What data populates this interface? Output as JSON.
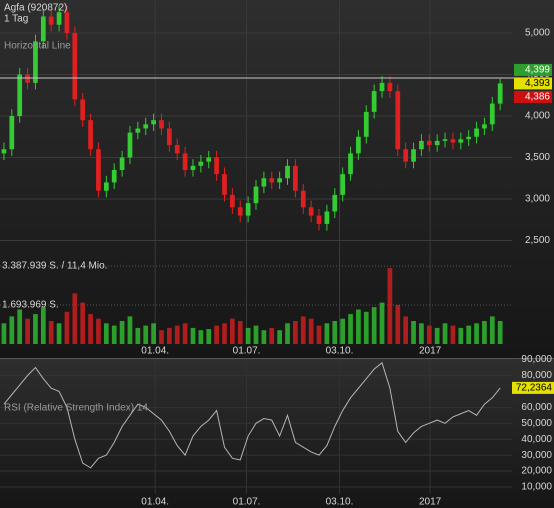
{
  "chart_data": [
    {
      "type": "candlestick",
      "title": "Agfa (920872)",
      "subtitle": "1 Tag",
      "x": [
        0,
        1,
        2,
        3,
        4,
        5,
        6,
        7,
        8,
        9,
        10,
        11,
        12,
        13,
        14,
        15,
        16,
        17,
        18,
        19,
        20,
        21,
        22,
        23,
        24,
        25,
        26,
        27,
        28,
        29,
        30,
        31,
        32,
        33,
        34,
        35,
        36,
        37,
        38,
        39,
        40,
        41,
        42,
        43,
        44,
        45,
        46,
        47,
        48,
        49,
        50,
        51,
        52,
        53,
        54,
        55,
        56,
        57,
        58,
        59,
        60,
        61,
        62,
        63
      ],
      "xlim": [
        -0.5,
        64.5
      ],
      "xticks": [
        {
          "value": 19.2,
          "label": "01.04."
        },
        {
          "value": 30.8,
          "label": "01.07."
        },
        {
          "value": 42.6,
          "label": "03.10."
        },
        {
          "value": 54.1,
          "label": "2017"
        }
      ],
      "open": [
        3.55,
        3.6,
        4.0,
        4.5,
        4.4,
        4.9,
        5.2,
        5.1,
        5.25,
        5.0,
        4.2,
        3.95,
        3.6,
        3.1,
        3.2,
        3.35,
        3.5,
        3.8,
        3.85,
        3.9,
        3.95,
        3.85,
        3.65,
        3.55,
        3.35,
        3.4,
        3.45,
        3.5,
        3.3,
        3.05,
        2.9,
        2.8,
        2.95,
        3.15,
        3.25,
        3.2,
        3.25,
        3.4,
        3.1,
        2.9,
        2.8,
        2.7,
        2.85,
        3.05,
        3.3,
        3.55,
        3.75,
        4.05,
        4.3,
        4.4,
        4.3,
        3.6,
        3.45,
        3.6,
        3.7,
        3.65,
        3.7,
        3.72,
        3.68,
        3.72,
        3.75,
        3.85,
        3.9,
        4.15
      ],
      "high": [
        3.68,
        4.08,
        4.58,
        4.58,
        4.98,
        5.28,
        5.28,
        5.33,
        5.33,
        5.08,
        4.28,
        4.03,
        3.68,
        3.28,
        3.43,
        3.58,
        3.88,
        3.93,
        3.98,
        4.03,
        4.03,
        3.93,
        3.73,
        3.63,
        3.48,
        3.53,
        3.58,
        3.58,
        3.38,
        3.13,
        2.98,
        3.03,
        3.23,
        3.33,
        3.33,
        3.33,
        3.48,
        3.48,
        3.18,
        2.98,
        2.88,
        2.93,
        3.13,
        3.38,
        3.63,
        3.83,
        4.13,
        4.38,
        4.48,
        4.48,
        4.38,
        3.68,
        3.68,
        3.78,
        3.78,
        3.78,
        3.8,
        3.8,
        3.8,
        3.83,
        3.93,
        3.98,
        4.23,
        4.45
      ],
      "low": [
        3.47,
        3.52,
        3.92,
        4.32,
        4.32,
        4.82,
        5.02,
        5.02,
        4.92,
        4.12,
        3.87,
        3.52,
        3.02,
        3.02,
        3.12,
        3.27,
        3.42,
        3.72,
        3.77,
        3.82,
        3.77,
        3.57,
        3.47,
        3.27,
        3.27,
        3.32,
        3.37,
        3.22,
        2.97,
        2.82,
        2.72,
        2.72,
        2.87,
        3.07,
        3.12,
        3.12,
        3.17,
        3.02,
        2.82,
        2.72,
        2.62,
        2.62,
        2.77,
        2.97,
        3.22,
        3.47,
        3.67,
        3.97,
        4.22,
        4.22,
        3.52,
        3.37,
        3.37,
        3.52,
        3.57,
        3.57,
        3.62,
        3.6,
        3.6,
        3.64,
        3.67,
        3.77,
        3.82,
        4.07
      ],
      "close": [
        3.6,
        4.0,
        4.5,
        4.4,
        4.9,
        5.2,
        5.1,
        5.25,
        5.0,
        4.2,
        3.95,
        3.6,
        3.1,
        3.2,
        3.35,
        3.5,
        3.8,
        3.85,
        3.9,
        3.95,
        3.85,
        3.65,
        3.55,
        3.35,
        3.4,
        3.45,
        3.5,
        3.3,
        3.05,
        2.9,
        2.8,
        2.95,
        3.15,
        3.25,
        3.2,
        3.25,
        3.4,
        3.1,
        2.9,
        2.8,
        2.7,
        2.85,
        3.05,
        3.3,
        3.55,
        3.75,
        4.05,
        4.3,
        4.4,
        4.3,
        3.6,
        3.45,
        3.6,
        3.7,
        3.65,
        3.7,
        3.72,
        3.68,
        3.72,
        3.75,
        3.85,
        3.9,
        4.15,
        4.393
      ],
      "up_color": "#33cc33",
      "down_color": "#e02020",
      "ylim": [
        1.253,
        5.398
      ],
      "yticks": [
        {
          "value": 5,
          "label": "5,000"
        },
        {
          "value": 4.5,
          "label": "4,500"
        },
        {
          "value": 4,
          "label": "4,000"
        },
        {
          "value": 3.5,
          "label": "3,500"
        },
        {
          "value": 3,
          "label": "3,000"
        },
        {
          "value": 2.5,
          "label": "2,500"
        }
      ],
      "grid": true,
      "horizontal_line": {
        "label": "Horizontal Line",
        "value": 4.458,
        "color": "#c8c8c8"
      },
      "price_labels": {
        "values": [
          4.399,
          4.393,
          4.386
        ],
        "value_labels": [
          "4,399",
          "4,393",
          "4,386"
        ],
        "colors": [
          "#2e9e2e",
          "#e6e000",
          "#cc1010"
        ],
        "text_colors": [
          "#ffffff",
          "#000000",
          "#ffffff"
        ]
      },
      "volume": {
        "values": [
          900000,
          1200000,
          1500000,
          1100000,
          1300000,
          1600000,
          1000000,
          900000,
          1400000,
          2200000,
          1800000,
          1300000,
          1100000,
          900000,
          800000,
          1000000,
          1200000,
          700000,
          800000,
          900000,
          600000,
          700000,
          800000,
          900000,
          700000,
          600000,
          650000,
          800000,
          900000,
          1100000,
          1000000,
          700000,
          800000,
          600000,
          700000,
          600000,
          900000,
          1000000,
          1200000,
          1100000,
          800000,
          900000,
          1000000,
          1100000,
          1300000,
          1500000,
          1400000,
          1600000,
          1800000,
          3300000,
          1700000,
          1200000,
          1000000,
          900000,
          800000,
          700000,
          900000,
          800000,
          700000,
          800000,
          900000,
          1000000,
          1200000,
          1000000
        ],
        "ylim": [
          0,
          4000000
        ],
        "yticks": [
          {
            "value": 3387939,
            "label": "3.387.939 S. / 11,4 Mio."
          },
          {
            "value": 1693969,
            "label": "1.693.969 S."
          }
        ]
      }
    },
    {
      "type": "line",
      "label": "RSI (Relative Strength Index) 14",
      "color": "#b4b4b4",
      "x": [
        0,
        1,
        2,
        3,
        4,
        5,
        6,
        7,
        8,
        9,
        10,
        11,
        12,
        13,
        14,
        15,
        16,
        17,
        18,
        19,
        20,
        21,
        22,
        23,
        24,
        25,
        26,
        27,
        28,
        29,
        30,
        31,
        32,
        33,
        34,
        35,
        36,
        37,
        38,
        39,
        40,
        41,
        42,
        43,
        44,
        45,
        46,
        47,
        48,
        49,
        50,
        51,
        52,
        53,
        54,
        55,
        56,
        57,
        58,
        59,
        60,
        61,
        62,
        63
      ],
      "xlim": [
        -0.5,
        64.5
      ],
      "xticks": [
        {
          "value": 19.2,
          "label": "01.04."
        },
        {
          "value": 30.8,
          "label": "01.07."
        },
        {
          "value": 42.6,
          "label": "03.10."
        },
        {
          "value": 54.1,
          "label": "2017"
        }
      ],
      "values": [
        62,
        68,
        74,
        80,
        85,
        78,
        72,
        70,
        60,
        40,
        25,
        22,
        28,
        30,
        38,
        48,
        55,
        62,
        60,
        56,
        52,
        45,
        36,
        30,
        42,
        48,
        52,
        58,
        35,
        28,
        27,
        42,
        50,
        53,
        52,
        42,
        55,
        38,
        35,
        32,
        30,
        36,
        48,
        58,
        66,
        72,
        78,
        84,
        88,
        72,
        45,
        38,
        44,
        48,
        50,
        52,
        50,
        54,
        56,
        58,
        55,
        62,
        66,
        72.2364
      ],
      "ylim": [
        -3.2,
        91
      ],
      "yticks": [
        {
          "value": 90,
          "label": "90,000"
        },
        {
          "value": 80,
          "label": "80,000"
        },
        {
          "value": 60,
          "label": "60,000"
        },
        {
          "value": 50,
          "label": "50,000"
        },
        {
          "value": 40,
          "label": "40,000"
        },
        {
          "value": 30,
          "label": "30,000"
        },
        {
          "value": 20,
          "label": "20,000"
        },
        {
          "value": 10,
          "label": "10,000"
        }
      ],
      "grid": true,
      "current": {
        "value": 72.2364,
        "label": "72,2364",
        "color": "#e6e000"
      }
    }
  ]
}
